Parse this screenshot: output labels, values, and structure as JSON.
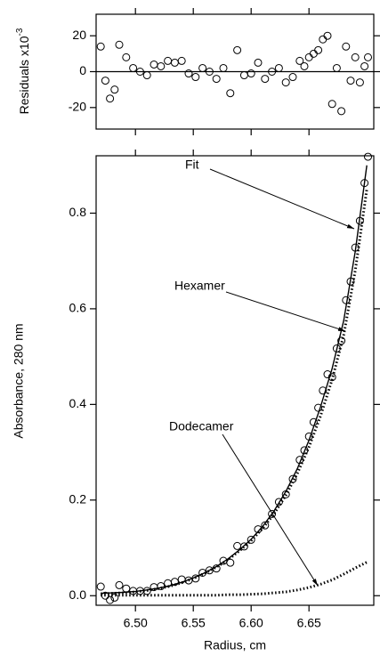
{
  "chart_data": [
    {
      "type": "scatter",
      "ylabel": "Residuals x10",
      "ylabel_exponent": "-3",
      "x": [
        6.47,
        6.474,
        6.478,
        6.482,
        6.486,
        6.492,
        6.498,
        6.504,
        6.51,
        6.516,
        6.522,
        6.528,
        6.534,
        6.54,
        6.546,
        6.552,
        6.558,
        6.564,
        6.57,
        6.576,
        6.582,
        6.588,
        6.594,
        6.6,
        6.606,
        6.612,
        6.618,
        6.624,
        6.63,
        6.636,
        6.642,
        6.646,
        6.65,
        6.654,
        6.658,
        6.662,
        6.666,
        6.67,
        6.674,
        6.678,
        6.682,
        6.686,
        6.69,
        6.694,
        6.698,
        6.701
      ],
      "values": [
        14,
        -5,
        -15,
        -10,
        15,
        8,
        2,
        0,
        -2,
        4,
        3,
        6,
        5,
        6,
        -1,
        -3,
        2,
        0,
        -4,
        2,
        -12,
        12,
        -2,
        -1,
        5,
        -4,
        0,
        2,
        -6,
        -3,
        6,
        3,
        8,
        10,
        12,
        18,
        20,
        -18,
        2,
        -22,
        14,
        -5,
        8,
        -6,
        3,
        8
      ],
      "xlim": [
        6.466,
        6.706
      ],
      "xticks": [
        6.5,
        6.55,
        6.6,
        6.65
      ],
      "ylim": [
        -32,
        32
      ],
      "yticks": [
        -20,
        0,
        20
      ],
      "zero_line": true,
      "color": "#000000"
    },
    {
      "type": "scatter",
      "xlabel": "Radius, cm",
      "ylabel": "Absorbance, 280 nm",
      "x": [
        6.47,
        6.474,
        6.478,
        6.482,
        6.486,
        6.492,
        6.498,
        6.504,
        6.51,
        6.516,
        6.522,
        6.528,
        6.534,
        6.54,
        6.546,
        6.552,
        6.558,
        6.564,
        6.57,
        6.576,
        6.582,
        6.588,
        6.594,
        6.6,
        6.606,
        6.612,
        6.618,
        6.624,
        6.63,
        6.636,
        6.642,
        6.646,
        6.65,
        6.654,
        6.658,
        6.662,
        6.666,
        6.67,
        6.674,
        6.678,
        6.682,
        6.686,
        6.69,
        6.694,
        6.698,
        6.701
      ],
      "values": [
        0.019,
        0.0,
        -0.009,
        -0.004,
        0.022,
        0.015,
        0.01,
        0.01,
        0.01,
        0.018,
        0.02,
        0.026,
        0.029,
        0.034,
        0.032,
        0.036,
        0.048,
        0.053,
        0.057,
        0.073,
        0.069,
        0.104,
        0.103,
        0.117,
        0.139,
        0.147,
        0.171,
        0.196,
        0.212,
        0.244,
        0.284,
        0.304,
        0.333,
        0.363,
        0.393,
        0.429,
        0.463,
        0.457,
        0.517,
        0.533,
        0.618,
        0.657,
        0.728,
        0.784,
        0.863,
        0.918
      ],
      "color": "#000000",
      "curve_x": [
        6.47,
        6.48,
        6.49,
        6.5,
        6.51,
        6.52,
        6.53,
        6.54,
        6.55,
        6.56,
        6.57,
        6.58,
        6.59,
        6.6,
        6.61,
        6.62,
        6.63,
        6.64,
        6.65,
        6.66,
        6.67,
        6.68,
        6.69,
        6.7
      ],
      "series": [
        {
          "name": "Fit",
          "color": "#000000",
          "style": "solid",
          "values": [
            0.005,
            0.006,
            0.007,
            0.009,
            0.012,
            0.016,
            0.021,
            0.028,
            0.037,
            0.048,
            0.061,
            0.077,
            0.096,
            0.118,
            0.145,
            0.178,
            0.218,
            0.266,
            0.325,
            0.395,
            0.475,
            0.575,
            0.72,
            0.9
          ]
        },
        {
          "name": "Hexamer",
          "color": "#000000",
          "style": "dotted",
          "values": [
            0.004,
            0.005,
            0.006,
            0.008,
            0.011,
            0.015,
            0.02,
            0.027,
            0.036,
            0.047,
            0.06,
            0.075,
            0.094,
            0.115,
            0.141,
            0.172,
            0.21,
            0.256,
            0.311,
            0.376,
            0.452,
            0.545,
            0.68,
            0.85
          ]
        },
        {
          "name": "Dodecamer",
          "color": "#000000",
          "style": "dotted",
          "values": [
            0.001,
            0.001,
            0.001,
            0.001,
            0.001,
            0.001,
            0.001,
            0.001,
            0.001,
            0.001,
            0.001,
            0.002,
            0.002,
            0.003,
            0.004,
            0.006,
            0.008,
            0.012,
            0.017,
            0.024,
            0.033,
            0.045,
            0.058,
            0.07
          ]
        }
      ],
      "xlim": [
        6.466,
        6.706
      ],
      "xticks": [
        {
          "value": 6.5,
          "label": "6.50"
        },
        6.55,
        {
          "value": 6.6,
          "label": "6.60"
        },
        6.65
      ],
      "ylim": [
        -0.02,
        0.92
      ],
      "yticks": [
        {
          "value": 0,
          "label": "0.0"
        },
        0.2,
        0.4,
        0.6,
        0.8
      ]
    }
  ]
}
